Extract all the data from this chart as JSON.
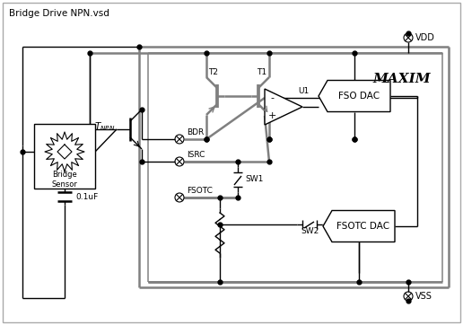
{
  "title": "Bridge Drive NPN.vsd",
  "background_color": "#ffffff",
  "line_color": "#808080",
  "dark_line_color": "#000000",
  "fig_width": 5.16,
  "fig_height": 3.62,
  "dpi": 100,
  "labels": {
    "title": "Bridge Drive NPN.vsd",
    "vdd": "VDD",
    "vss": "VSS",
    "bdr": "BDR",
    "isrc": "ISRC",
    "fsotc": "FSOTC",
    "t1": "T1",
    "t2": "T2",
    "u1": "U1",
    "sw1": "SW1",
    "sw2": "SW2",
    "bridge_sensor": "Bridge\nSensor",
    "cap": "0.1uF",
    "fso_dac": "FSO DAC",
    "fsotc_dac": "FSOTC DAC",
    "maxim": "MAXIM"
  }
}
